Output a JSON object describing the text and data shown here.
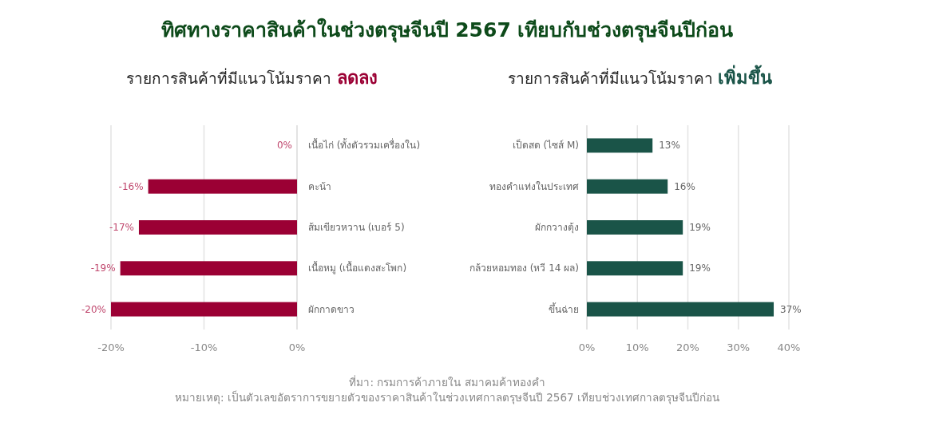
{
  "chart_data": [
    {
      "type": "bar",
      "orientation": "horizontal",
      "title": "ทิศทางราคาสินค้าในช่วงตรุษจีนปี 2567 เทียบกับช่วงตรุษจีนปีก่อน",
      "subtitle": "รายการสินค้าที่มีแนวโน้มราคา ลดลง",
      "categories": [
        "เนื้อไก่ (ทั้งตัวรวมเครื่องใน)",
        "คะน้า",
        "ส้มเขียวหวาน (เบอร์ 5)",
        "เนื้อหมู (เนื้อแดงสะโพก)",
        "ผักกาดขาว"
      ],
      "series": [
        {
          "color": "#9b0034",
          "values": [
            0,
            -16,
            -17,
            -19,
            -20
          ],
          "value_labels": [
            "0%",
            "-16%",
            "-17%",
            "-19%",
            "-20%"
          ]
        }
      ],
      "xlim": [
        -20,
        0
      ],
      "xticks": [
        {
          "value": -20,
          "label": "-20%"
        },
        {
          "value": -10,
          "label": "-10%"
        },
        {
          "value": 0,
          "label": "0%"
        }
      ],
      "grid": "x",
      "annotations": [
        "ที่มา: กรมการค้าภายใน สมาคมค้าทองคำ",
        "หมายเหตุ: เป็นตัวเลขอัตราการขยายตัวของราคาสินค้าในช่วงเทศกาลตรุษจีนปี 2567 เทียบช่วงเทศกาลตรุษจีนปีก่อน"
      ]
    },
    {
      "type": "bar",
      "orientation": "horizontal",
      "subtitle": "รายการสินค้าที่มีแนวโน้มราคา เพิ่มขึ้น",
      "categories": [
        "เป็ดสด (ไซส์ M)",
        "ทองคำแท่งในประเทศ",
        "ผักกวางตุ้ง",
        "กล้วยหอมทอง (หวี 14 ผล)",
        "ขึ้นฉ่าย"
      ],
      "series": [
        {
          "color": "#1a5448",
          "values": [
            13,
            16,
            19,
            19,
            37
          ],
          "value_labels": [
            "13%",
            "16%",
            "19%",
            "19%",
            "37%"
          ]
        }
      ],
      "xlim": [
        0,
        40
      ],
      "xticks": [
        {
          "value": 0,
          "label": "0%"
        },
        {
          "value": 10,
          "label": "10%"
        },
        {
          "value": 20,
          "label": "20%"
        },
        {
          "value": 30,
          "label": "30%"
        },
        {
          "value": 40,
          "label": "40%"
        }
      ],
      "grid": "x"
    }
  ]
}
